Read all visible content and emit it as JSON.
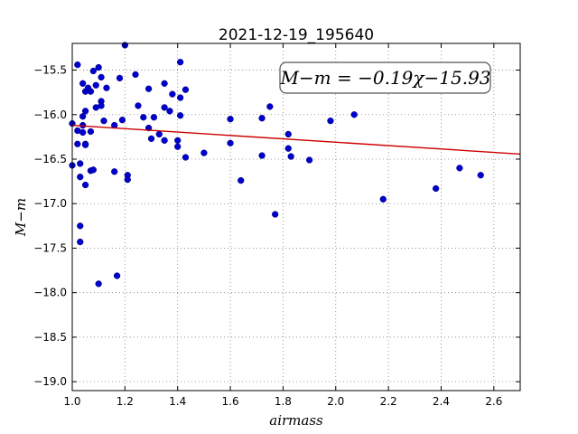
{
  "chart_data": {
    "type": "scatter",
    "title": "2021-12-19_195640",
    "xlabel": "airmass",
    "ylabel": "M−m",
    "xlim": [
      1.0,
      2.7
    ],
    "ylim": [
      -19.1,
      -15.2
    ],
    "x_ticks": [
      1.0,
      1.2,
      1.4,
      1.6,
      1.8,
      2.0,
      2.2,
      2.4,
      2.6
    ],
    "x_tick_labels": [
      "1.0",
      "1.2",
      "1.4",
      "1.6",
      "1.8",
      "2.0",
      "2.2",
      "2.4",
      "2.6"
    ],
    "y_ticks": [
      -15.5,
      -16.0,
      -16.5,
      -17.0,
      -17.5,
      -18.0,
      -18.5,
      -19.0
    ],
    "y_tick_labels": [
      "−15.5",
      "−16.0",
      "−16.5",
      "−17.0",
      "−17.5",
      "−18.0",
      "−18.5",
      "−19.0"
    ],
    "grid": true,
    "point_color": "#0000cc",
    "fit_line": {
      "slope": -0.19,
      "intercept": -15.93,
      "color": "#cc0000",
      "label": "M−m = −0.19χ−15.93"
    },
    "points": [
      [
        1.0,
        -16.1
      ],
      [
        1.0,
        -16.57
      ],
      [
        1.02,
        -15.44
      ],
      [
        1.02,
        -16.18
      ],
      [
        1.02,
        -16.33
      ],
      [
        1.03,
        -16.55
      ],
      [
        1.03,
        -16.7
      ],
      [
        1.03,
        -17.25
      ],
      [
        1.03,
        -17.43
      ],
      [
        1.04,
        -15.65
      ],
      [
        1.04,
        -16.02
      ],
      [
        1.04,
        -16.12
      ],
      [
        1.04,
        -16.2
      ],
      [
        1.05,
        -15.74
      ],
      [
        1.05,
        -15.96
      ],
      [
        1.05,
        -16.33
      ],
      [
        1.05,
        -16.34
      ],
      [
        1.05,
        -16.79
      ],
      [
        1.06,
        -15.7
      ],
      [
        1.07,
        -15.74
      ],
      [
        1.07,
        -16.19
      ],
      [
        1.07,
        -16.63
      ],
      [
        1.08,
        -16.62
      ],
      [
        1.08,
        -15.51
      ],
      [
        1.09,
        -15.67
      ],
      [
        1.09,
        -15.92
      ],
      [
        1.1,
        -15.47
      ],
      [
        1.1,
        -17.9
      ],
      [
        1.11,
        -15.85
      ],
      [
        1.11,
        -15.9
      ],
      [
        1.11,
        -15.58
      ],
      [
        1.12,
        -16.07
      ],
      [
        1.13,
        -15.7
      ],
      [
        1.16,
        -16.12
      ],
      [
        1.16,
        -16.64
      ],
      [
        1.17,
        -17.81
      ],
      [
        1.18,
        -15.59
      ],
      [
        1.19,
        -16.06
      ],
      [
        1.2,
        -15.22
      ],
      [
        1.21,
        -16.68
      ],
      [
        1.21,
        -16.73
      ],
      [
        1.24,
        -15.55
      ],
      [
        1.25,
        -15.9
      ],
      [
        1.27,
        -16.03
      ],
      [
        1.29,
        -15.71
      ],
      [
        1.29,
        -16.15
      ],
      [
        1.3,
        -16.27
      ],
      [
        1.31,
        -16.03
      ],
      [
        1.33,
        -16.22
      ],
      [
        1.35,
        -15.92
      ],
      [
        1.35,
        -15.65
      ],
      [
        1.35,
        -16.29
      ],
      [
        1.37,
        -15.96
      ],
      [
        1.38,
        -15.77
      ],
      [
        1.4,
        -16.29
      ],
      [
        1.4,
        -16.36
      ],
      [
        1.41,
        -15.81
      ],
      [
        1.41,
        -15.41
      ],
      [
        1.41,
        -16.01
      ],
      [
        1.43,
        -15.72
      ],
      [
        1.43,
        -16.48
      ],
      [
        1.5,
        -16.43
      ],
      [
        1.6,
        -16.05
      ],
      [
        1.6,
        -16.32
      ],
      [
        1.64,
        -16.74
      ],
      [
        1.72,
        -16.04
      ],
      [
        1.72,
        -16.46
      ],
      [
        1.75,
        -15.91
      ],
      [
        1.77,
        -17.12
      ],
      [
        1.82,
        -16.22
      ],
      [
        1.82,
        -16.38
      ],
      [
        1.83,
        -16.47
      ],
      [
        1.9,
        -16.51
      ],
      [
        1.98,
        -16.07
      ],
      [
        2.07,
        -16.0
      ],
      [
        2.18,
        -16.95
      ],
      [
        2.38,
        -16.83
      ],
      [
        2.47,
        -16.6
      ],
      [
        2.55,
        -16.68
      ]
    ]
  }
}
